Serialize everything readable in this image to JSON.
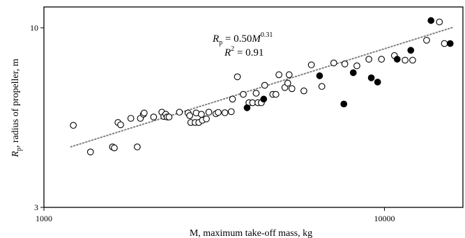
{
  "chart_data": {
    "type": "scatter",
    "xscale": "log",
    "yscale": "log",
    "xlim": [
      1000,
      17000
    ],
    "ylim": [
      3,
      11.5
    ],
    "xticks": [
      1000,
      10000
    ],
    "xtick_labels": [
      "1000",
      "10000"
    ],
    "yticks": [
      3,
      10
    ],
    "ytick_labels": [
      "3",
      "10"
    ],
    "xlabel": "M, maximum take-off mass, kg",
    "ylabel_var": "R",
    "ylabel_sub": "p",
    "ylabel_rest": ", radius of propeller, m",
    "grid": false,
    "annotation": {
      "equation": {
        "lhs": "R",
        "lhs_sub": "p",
        "mid": " = 0.50",
        "base": "M",
        "exp": "0.31"
      },
      "r2": {
        "sym": "R",
        "sup": "2",
        "rest": " = 0.91"
      }
    },
    "trendline": {
      "type": "power",
      "coef": 0.5,
      "exp": 0.31,
      "x_range": [
        1200,
        16000
      ],
      "style": "dotted",
      "color": "#808080"
    },
    "series": [
      {
        "marker": "open-circle",
        "points": [
          [
            1220,
            5.2
          ],
          [
            1370,
            4.35
          ],
          [
            1590,
            4.5
          ],
          [
            1610,
            4.47
          ],
          [
            1650,
            5.3
          ],
          [
            1680,
            5.22
          ],
          [
            1800,
            5.45
          ],
          [
            1880,
            4.5
          ],
          [
            1920,
            5.45
          ],
          [
            1960,
            5.6
          ],
          [
            1970,
            5.65
          ],
          [
            2100,
            5.5
          ],
          [
            2220,
            5.68
          ],
          [
            2250,
            5.52
          ],
          [
            2280,
            5.6
          ],
          [
            2300,
            5.5
          ],
          [
            2330,
            5.5
          ],
          [
            2500,
            5.68
          ],
          [
            2650,
            5.65
          ],
          [
            2680,
            5.55
          ],
          [
            2700,
            5.3
          ],
          [
            2780,
            5.3
          ],
          [
            2800,
            5.65
          ],
          [
            2850,
            5.3
          ],
          [
            2900,
            5.6
          ],
          [
            2920,
            5.38
          ],
          [
            3000,
            5.43
          ],
          [
            3050,
            5.68
          ],
          [
            3200,
            5.62
          ],
          [
            3250,
            5.67
          ],
          [
            3400,
            5.66
          ],
          [
            3550,
            5.7
          ],
          [
            3580,
            6.2
          ],
          [
            3700,
            7.2
          ],
          [
            3850,
            6.4
          ],
          [
            4000,
            6.05
          ],
          [
            4100,
            6.05
          ],
          [
            4200,
            6.45
          ],
          [
            4250,
            6.05
          ],
          [
            4350,
            6.05
          ],
          [
            4450,
            6.8
          ],
          [
            4700,
            6.4
          ],
          [
            4800,
            6.4
          ],
          [
            4900,
            7.3
          ],
          [
            5100,
            6.7
          ],
          [
            5200,
            6.9
          ],
          [
            5250,
            7.3
          ],
          [
            5350,
            6.65
          ],
          [
            5800,
            6.55
          ],
          [
            6100,
            7.8
          ],
          [
            6550,
            6.75
          ],
          [
            7100,
            7.9
          ],
          [
            7650,
            7.85
          ],
          [
            8300,
            7.75
          ],
          [
            9000,
            8.1
          ],
          [
            9800,
            8.1
          ],
          [
            10700,
            8.3
          ],
          [
            11500,
            8.05
          ],
          [
            12100,
            8.05
          ],
          [
            13300,
            9.2
          ],
          [
            14500,
            10.4
          ],
          [
            15000,
            9.0
          ]
        ]
      },
      {
        "marker": "filled-circle",
        "points": [
          [
            3950,
            5.85
          ],
          [
            4420,
            6.2
          ],
          [
            6450,
            7.25
          ],
          [
            7600,
            6.0
          ],
          [
            8100,
            7.4
          ],
          [
            9150,
            7.15
          ],
          [
            9550,
            6.95
          ],
          [
            10900,
            8.1
          ],
          [
            11950,
            8.6
          ],
          [
            13700,
            10.5
          ],
          [
            15600,
            9.0
          ]
        ]
      }
    ]
  }
}
